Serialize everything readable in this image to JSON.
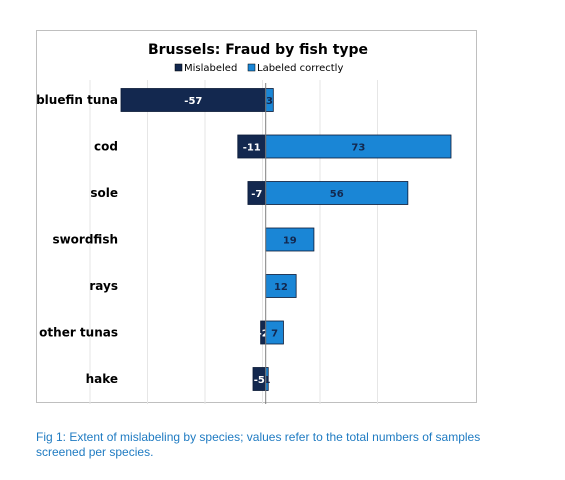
{
  "chart_data": {
    "type": "bar",
    "orientation": "horizontal",
    "title": "Brussels: Fraud by fish type",
    "categories": [
      "bluefin tuna",
      "cod",
      "sole",
      "swordfish",
      "rays",
      "other tunas",
      "hake"
    ],
    "series": [
      {
        "name": "Mislabeled",
        "values": [
          -57,
          -11,
          -7,
          0,
          0,
          -2,
          -5
        ],
        "labels": [
          "-57",
          "-11",
          "-7",
          "",
          "",
          "-2",
          "-5"
        ],
        "color": "#13284f"
      },
      {
        "name": "Labeled correctly",
        "values": [
          3,
          73,
          56,
          19,
          12,
          7,
          1
        ],
        "labels": [
          "3",
          "73",
          "56",
          "19",
          "12",
          "7",
          "1"
        ],
        "color": "#1a86d6"
      }
    ],
    "xlim": [
      -57,
      73
    ],
    "grid": "vertical",
    "legend": "top"
  },
  "caption": "Fig 1: Extent of mislabeling by species; values refer to the total numbers of samples screened per species."
}
